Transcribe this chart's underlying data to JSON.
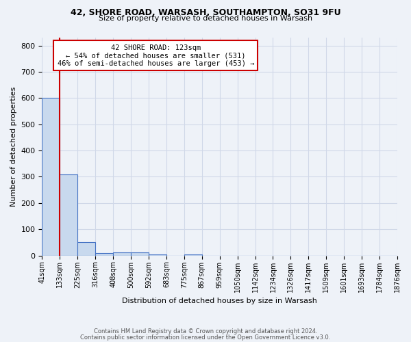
{
  "title_line1": "42, SHORE ROAD, WARSASH, SOUTHAMPTON, SO31 9FU",
  "title_line2": "Size of property relative to detached houses in Warsash",
  "xlabel": "Distribution of detached houses by size in Warsash",
  "ylabel": "Number of detached properties",
  "footnote1": "Contains HM Land Registry data © Crown copyright and database right 2024.",
  "footnote2": "Contains public sector information licensed under the Open Government Licence v3.0.",
  "bin_labels": [
    "41sqm",
    "133sqm",
    "225sqm",
    "316sqm",
    "408sqm",
    "500sqm",
    "592sqm",
    "683sqm",
    "775sqm",
    "867sqm",
    "959sqm",
    "1050sqm",
    "1142sqm",
    "1234sqm",
    "1326sqm",
    "1417sqm",
    "1509sqm",
    "1601sqm",
    "1693sqm",
    "1784sqm",
    "1876sqm"
  ],
  "bar_values": [
    600,
    310,
    50,
    10,
    12,
    12,
    5,
    0,
    5,
    0,
    0,
    0,
    0,
    0,
    0,
    0,
    0,
    0,
    0,
    0
  ],
  "bar_color": "#c8d9ee",
  "bar_edge_color": "#4472c4",
  "ylim": [
    0,
    830
  ],
  "yticks": [
    0,
    100,
    200,
    300,
    400,
    500,
    600,
    700,
    800
  ],
  "annotation_text_line1": "42 SHORE ROAD: 123sqm",
  "annotation_text_line2": "← 54% of detached houses are smaller (531)",
  "annotation_text_line3": "46% of semi-detached houses are larger (453) →",
  "annotation_box_color": "#ffffff",
  "annotation_box_edge_color": "#cc0000",
  "vline_color": "#cc0000",
  "grid_color": "#d0d8e8",
  "background_color": "#eef2f8"
}
